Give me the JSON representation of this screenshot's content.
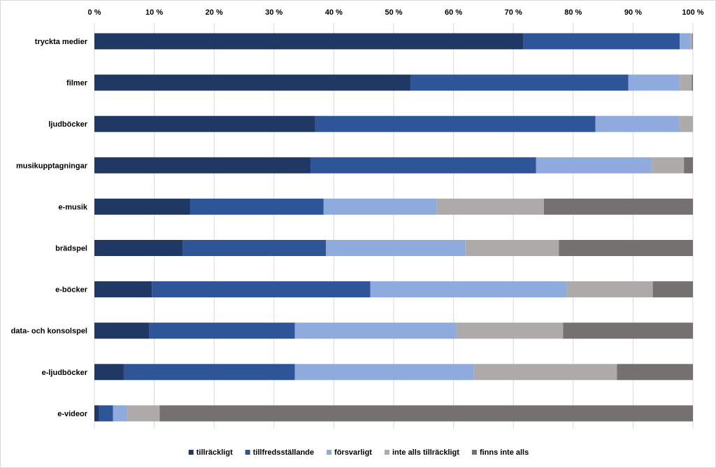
{
  "chart_data": {
    "type": "bar",
    "orientation": "horizontal",
    "stacked": true,
    "title": "",
    "xlabel": "",
    "ylabel": "",
    "xlim": [
      0,
      100
    ],
    "x_tick_labels": [
      "0 %",
      "10 %",
      "20 %",
      "30 %",
      "40 %",
      "50 %",
      "60 %",
      "70 %",
      "80 %",
      "90 %",
      "100 %"
    ],
    "x_axis_position": "top",
    "grid": true,
    "legend_position": "bottom",
    "categories": [
      "tryckta medier",
      "filmer",
      "ljudböcker",
      "musikupptagningar",
      "e-musik",
      "brädspel",
      "e-böcker",
      "data- och konsolspel",
      "e-ljudböcker",
      "e-videor"
    ],
    "series": [
      {
        "name": "tillräckligt",
        "color": "#1f3864",
        "values": [
          71.7,
          52.8,
          36.9,
          36.1,
          16.0,
          14.8,
          9.6,
          9.2,
          4.9,
          0.8
        ]
      },
      {
        "name": "tillfredsställande",
        "color": "#2e5597",
        "values": [
          26.1,
          36.4,
          46.8,
          37.7,
          22.3,
          23.9,
          36.5,
          24.3,
          28.6,
          2.3
        ]
      },
      {
        "name": "försvarligt",
        "color": "#8faadc",
        "values": [
          1.8,
          8.6,
          14.1,
          19.2,
          18.9,
          23.3,
          32.8,
          27.0,
          29.9,
          2.4
        ]
      },
      {
        "name": "inte alls tillräckligt",
        "color": "#aeaaaa",
        "values": [
          0.3,
          2.0,
          2.2,
          5.5,
          17.9,
          15.6,
          14.4,
          17.8,
          23.9,
          5.4
        ]
      },
      {
        "name": "finns inte alls",
        "color": "#767171",
        "values": [
          0.1,
          0.2,
          0.0,
          1.5,
          24.9,
          22.4,
          6.7,
          21.7,
          12.7,
          89.1
        ]
      }
    ]
  }
}
